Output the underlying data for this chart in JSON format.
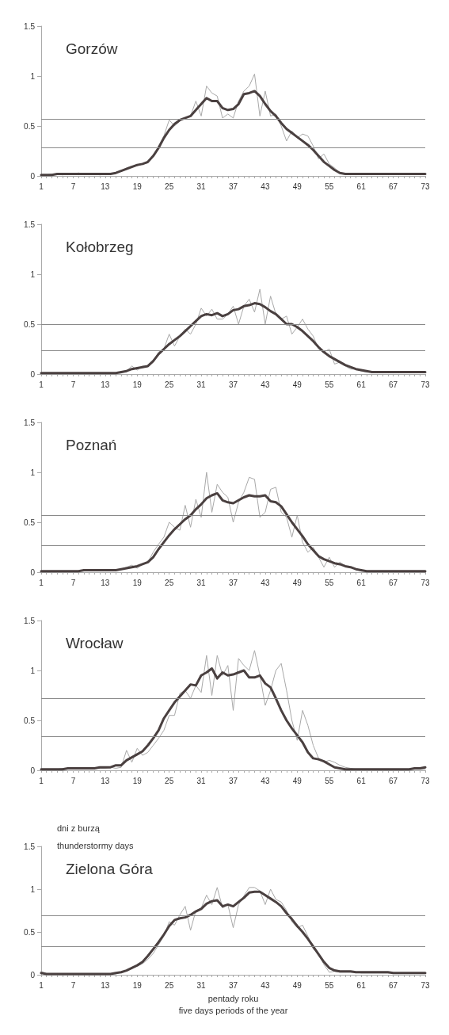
{
  "chart_data": [
    {
      "type": "line",
      "title": "Gorzów",
      "categories": [
        "1",
        null,
        null,
        null,
        null,
        null,
        "7",
        null,
        null,
        null,
        null,
        null,
        "13",
        null,
        null,
        null,
        null,
        null,
        "19",
        null,
        null,
        null,
        null,
        null,
        "25",
        null,
        null,
        null,
        null,
        null,
        "31",
        null,
        null,
        null,
        null,
        null,
        "37",
        null,
        null,
        null,
        null,
        null,
        "43",
        null,
        null,
        null,
        null,
        null,
        "49",
        null,
        null,
        null,
        null,
        null,
        "55",
        null,
        null,
        null,
        null,
        null,
        "61",
        null,
        null,
        null,
        null,
        null,
        "67",
        null,
        null,
        null,
        null,
        null,
        "73"
      ],
      "ylim": [
        0,
        1.5
      ],
      "yticks": [
        0,
        0.5,
        1,
        1.5
      ],
      "series": [
        {
          "color": "#a8a8a8",
          "values": [
            0.01,
            0.01,
            0.02,
            0.02,
            0.01,
            0.02,
            0.02,
            0.03,
            0.02,
            0.02,
            0.02,
            0.01,
            0.02,
            0.02,
            0.03,
            0.05,
            0.08,
            0.1,
            0.1,
            0.12,
            0.13,
            0.2,
            0.3,
            0.4,
            0.56,
            0.5,
            0.55,
            0.58,
            0.6,
            0.75,
            0.6,
            0.9,
            0.83,
            0.8,
            0.58,
            0.62,
            0.58,
            0.75,
            0.85,
            0.9,
            1.02,
            0.6,
            0.85,
            0.6,
            0.62,
            0.5,
            0.35,
            0.45,
            0.38,
            0.42,
            0.4,
            0.3,
            0.17,
            0.22,
            0.12,
            0.08,
            0.03,
            0.02,
            0.02,
            0.02,
            0.02,
            0.02,
            0.02,
            0.02,
            0.02,
            0.02,
            0.02,
            0.02,
            0.02,
            0.02,
            0.02,
            0.02,
            0.02
          ]
        },
        {
          "color": "#4a4040",
          "values": [
            0.01,
            0.01,
            0.01,
            0.02,
            0.02,
            0.02,
            0.02,
            0.02,
            0.02,
            0.02,
            0.02,
            0.02,
            0.02,
            0.02,
            0.03,
            0.05,
            0.07,
            0.09,
            0.11,
            0.12,
            0.14,
            0.2,
            0.28,
            0.38,
            0.46,
            0.52,
            0.56,
            0.58,
            0.6,
            0.66,
            0.72,
            0.78,
            0.75,
            0.75,
            0.68,
            0.66,
            0.67,
            0.72,
            0.82,
            0.83,
            0.85,
            0.8,
            0.72,
            0.65,
            0.6,
            0.53,
            0.47,
            0.43,
            0.39,
            0.35,
            0.31,
            0.26,
            0.2,
            0.14,
            0.1,
            0.06,
            0.03,
            0.02,
            0.02,
            0.02,
            0.02,
            0.02,
            0.02,
            0.02,
            0.02,
            0.02,
            0.02,
            0.02,
            0.02,
            0.02,
            0.02,
            0.02,
            0.02
          ]
        }
      ],
      "ref_lines": [
        {
          "axis": "y",
          "value": 0.57,
          "color": "#8a8a8a"
        },
        {
          "axis": "y",
          "value": 0.28,
          "color": "#8a8a8a"
        }
      ]
    },
    {
      "type": "line",
      "title": "Kołobrzeg",
      "categories": [
        "1",
        null,
        null,
        null,
        null,
        null,
        "7",
        null,
        null,
        null,
        null,
        null,
        "13",
        null,
        null,
        null,
        null,
        null,
        "19",
        null,
        null,
        null,
        null,
        null,
        "25",
        null,
        null,
        null,
        null,
        null,
        "31",
        null,
        null,
        null,
        null,
        null,
        "37",
        null,
        null,
        null,
        null,
        null,
        "43",
        null,
        null,
        null,
        null,
        null,
        "49",
        null,
        null,
        null,
        null,
        null,
        "55",
        null,
        null,
        null,
        null,
        null,
        "61",
        null,
        null,
        null,
        null,
        null,
        "67",
        null,
        null,
        null,
        null,
        null,
        "73"
      ],
      "ylim": [
        0,
        1.5
      ],
      "yticks": [
        0,
        0.5,
        1,
        1.5
      ],
      "series": [
        {
          "color": "#a8a8a8",
          "values": [
            0.01,
            0.01,
            0.01,
            0.01,
            0.01,
            0.01,
            0.01,
            0.01,
            0.01,
            0.01,
            0.01,
            0.01,
            0.01,
            0.01,
            0.01,
            0.01,
            0.03,
            0.08,
            0.04,
            0.08,
            0.08,
            0.12,
            0.22,
            0.25,
            0.4,
            0.28,
            0.38,
            0.45,
            0.4,
            0.5,
            0.66,
            0.58,
            0.65,
            0.55,
            0.55,
            0.6,
            0.68,
            0.5,
            0.68,
            0.75,
            0.62,
            0.85,
            0.5,
            0.78,
            0.6,
            0.55,
            0.58,
            0.4,
            0.47,
            0.55,
            0.45,
            0.38,
            0.25,
            0.22,
            0.25,
            0.1,
            0.12,
            0.08,
            0.05,
            0.05,
            0.03,
            0.02,
            0.02,
            0.02,
            0.02,
            0.02,
            0.02,
            0.02,
            0.02,
            0.02,
            0.02,
            0.02,
            0.02
          ]
        },
        {
          "color": "#4a4040",
          "values": [
            0.01,
            0.01,
            0.01,
            0.01,
            0.01,
            0.01,
            0.01,
            0.01,
            0.01,
            0.01,
            0.01,
            0.01,
            0.01,
            0.01,
            0.01,
            0.02,
            0.03,
            0.05,
            0.06,
            0.07,
            0.08,
            0.13,
            0.2,
            0.25,
            0.3,
            0.34,
            0.38,
            0.43,
            0.48,
            0.53,
            0.58,
            0.6,
            0.59,
            0.61,
            0.58,
            0.6,
            0.64,
            0.65,
            0.68,
            0.69,
            0.71,
            0.7,
            0.67,
            0.63,
            0.6,
            0.55,
            0.5,
            0.5,
            0.47,
            0.43,
            0.38,
            0.33,
            0.27,
            0.22,
            0.18,
            0.15,
            0.12,
            0.09,
            0.07,
            0.05,
            0.04,
            0.03,
            0.02,
            0.02,
            0.02,
            0.02,
            0.02,
            0.02,
            0.02,
            0.02,
            0.02,
            0.02,
            0.02
          ]
        }
      ],
      "ref_lines": [
        {
          "axis": "y",
          "value": 0.5,
          "color": "#8a8a8a"
        },
        {
          "axis": "y",
          "value": 0.24,
          "color": "#8a8a8a"
        }
      ]
    },
    {
      "type": "line",
      "title": "Poznań",
      "categories": [
        "1",
        null,
        null,
        null,
        null,
        null,
        "7",
        null,
        null,
        null,
        null,
        null,
        "13",
        null,
        null,
        null,
        null,
        null,
        "19",
        null,
        null,
        null,
        null,
        null,
        "25",
        null,
        null,
        null,
        null,
        null,
        "31",
        null,
        null,
        null,
        null,
        null,
        "37",
        null,
        null,
        null,
        null,
        null,
        "43",
        null,
        null,
        null,
        null,
        null,
        "49",
        null,
        null,
        null,
        null,
        null,
        "55",
        null,
        null,
        null,
        null,
        null,
        "61",
        null,
        null,
        null,
        null,
        null,
        "67",
        null,
        null,
        null,
        null,
        null,
        "73"
      ],
      "ylim": [
        0,
        1.5
      ],
      "yticks": [
        0,
        0.5,
        1,
        1.5
      ],
      "series": [
        {
          "color": "#a8a8a8",
          "values": [
            0.01,
            0.01,
            0.01,
            0.01,
            0.01,
            0.01,
            0.01,
            0.01,
            0.02,
            0.02,
            0.02,
            0.02,
            0.02,
            0.02,
            0.02,
            0.03,
            0.05,
            0.07,
            0.04,
            0.08,
            0.1,
            0.2,
            0.28,
            0.35,
            0.5,
            0.45,
            0.42,
            0.67,
            0.45,
            0.73,
            0.55,
            1.0,
            0.6,
            0.88,
            0.8,
            0.75,
            0.5,
            0.7,
            0.8,
            0.95,
            0.93,
            0.55,
            0.6,
            0.83,
            0.85,
            0.6,
            0.55,
            0.35,
            0.57,
            0.3,
            0.2,
            0.25,
            0.15,
            0.05,
            0.15,
            0.05,
            0.1,
            0.06,
            0.05,
            0.03,
            0.01,
            0.01,
            0.01,
            0.01,
            0.01,
            0.01,
            0.01,
            0.01,
            0.01,
            0.01,
            0.01,
            0.01,
            0.01
          ]
        },
        {
          "color": "#4a4040",
          "values": [
            0.01,
            0.01,
            0.01,
            0.01,
            0.01,
            0.01,
            0.01,
            0.01,
            0.02,
            0.02,
            0.02,
            0.02,
            0.02,
            0.02,
            0.02,
            0.03,
            0.04,
            0.05,
            0.06,
            0.08,
            0.1,
            0.15,
            0.23,
            0.3,
            0.37,
            0.43,
            0.48,
            0.53,
            0.57,
            0.63,
            0.68,
            0.74,
            0.77,
            0.79,
            0.72,
            0.7,
            0.69,
            0.72,
            0.75,
            0.77,
            0.76,
            0.76,
            0.77,
            0.71,
            0.7,
            0.66,
            0.58,
            0.5,
            0.43,
            0.36,
            0.28,
            0.22,
            0.16,
            0.13,
            0.11,
            0.09,
            0.08,
            0.06,
            0.05,
            0.03,
            0.02,
            0.01,
            0.01,
            0.01,
            0.01,
            0.01,
            0.01,
            0.01,
            0.01,
            0.01,
            0.01,
            0.01,
            0.01
          ]
        }
      ],
      "ref_lines": [
        {
          "axis": "y",
          "value": 0.57,
          "color": "#8a8a8a"
        },
        {
          "axis": "y",
          "value": 0.27,
          "color": "#8a8a8a"
        }
      ]
    },
    {
      "type": "line",
      "title": "Wrocław",
      "categories": [
        "1",
        null,
        null,
        null,
        null,
        null,
        "7",
        null,
        null,
        null,
        null,
        null,
        "13",
        null,
        null,
        null,
        null,
        null,
        "19",
        null,
        null,
        null,
        null,
        null,
        "25",
        null,
        null,
        null,
        null,
        null,
        "31",
        null,
        null,
        null,
        null,
        null,
        "37",
        null,
        null,
        null,
        null,
        null,
        "43",
        null,
        null,
        null,
        null,
        null,
        "49",
        null,
        null,
        null,
        null,
        null,
        "55",
        null,
        null,
        null,
        null,
        null,
        "61",
        null,
        null,
        null,
        null,
        null,
        "67",
        null,
        null,
        null,
        null,
        null,
        "73"
      ],
      "ylim": [
        0,
        1.5
      ],
      "yticks": [
        0,
        0.5,
        1,
        1.5
      ],
      "series": [
        {
          "color": "#a8a8a8",
          "values": [
            0.01,
            0.01,
            0.01,
            0.01,
            0.02,
            0.02,
            0.02,
            0.02,
            0.02,
            0.02,
            0.02,
            0.02,
            0.02,
            0.03,
            0.02,
            0.03,
            0.2,
            0.08,
            0.22,
            0.15,
            0.18,
            0.25,
            0.32,
            0.4,
            0.55,
            0.55,
            0.77,
            0.8,
            0.72,
            0.85,
            0.78,
            1.15,
            0.75,
            1.15,
            0.95,
            1.05,
            0.6,
            1.12,
            1.05,
            1.0,
            1.2,
            0.95,
            0.65,
            0.8,
            1.0,
            1.07,
            0.8,
            0.5,
            0.3,
            0.6,
            0.45,
            0.25,
            0.12,
            0.08,
            0.1,
            0.08,
            0.05,
            0.03,
            0.02,
            0.01,
            0.01,
            0.01,
            0.01,
            0.01,
            0.01,
            0.01,
            0.01,
            0.01,
            0.01,
            0.01,
            0.01,
            0.01,
            0.01
          ]
        },
        {
          "color": "#4a4040",
          "values": [
            0.01,
            0.01,
            0.01,
            0.01,
            0.01,
            0.02,
            0.02,
            0.02,
            0.02,
            0.02,
            0.02,
            0.03,
            0.03,
            0.03,
            0.05,
            0.05,
            0.1,
            0.13,
            0.16,
            0.19,
            0.25,
            0.32,
            0.4,
            0.52,
            0.6,
            0.68,
            0.74,
            0.8,
            0.86,
            0.85,
            0.95,
            0.98,
            1.02,
            0.92,
            0.98,
            0.95,
            0.96,
            0.98,
            1.0,
            0.93,
            0.93,
            0.95,
            0.87,
            0.83,
            0.72,
            0.6,
            0.5,
            0.42,
            0.35,
            0.28,
            0.18,
            0.12,
            0.11,
            0.09,
            0.06,
            0.03,
            0.02,
            0.01,
            0.01,
            0.01,
            0.01,
            0.01,
            0.01,
            0.01,
            0.01,
            0.01,
            0.01,
            0.01,
            0.01,
            0.01,
            0.02,
            0.02,
            0.03
          ]
        }
      ],
      "ref_lines": [
        {
          "axis": "y",
          "value": 0.72,
          "color": "#8a8a8a"
        },
        {
          "axis": "y",
          "value": 0.34,
          "color": "#8a8a8a"
        }
      ]
    },
    {
      "type": "line",
      "title": "Zielona Góra",
      "ylabel": "dni z burzą\nthunderstormy days",
      "xlabel": "pentady roku\nfive days periods of the year",
      "categories": [
        "1",
        null,
        null,
        null,
        null,
        null,
        "7",
        null,
        null,
        null,
        null,
        null,
        "13",
        null,
        null,
        null,
        null,
        null,
        "19",
        null,
        null,
        null,
        null,
        null,
        "25",
        null,
        null,
        null,
        null,
        null,
        "31",
        null,
        null,
        null,
        null,
        null,
        "37",
        null,
        null,
        null,
        null,
        null,
        "43",
        null,
        null,
        null,
        null,
        null,
        "49",
        null,
        null,
        null,
        null,
        null,
        "55",
        null,
        null,
        null,
        null,
        null,
        "61",
        null,
        null,
        null,
        null,
        null,
        "67",
        null,
        null,
        null,
        null,
        null,
        "73"
      ],
      "ylim": [
        0,
        1.5
      ],
      "yticks": [
        0,
        0.5,
        1,
        1.5
      ],
      "series": [
        {
          "color": "#a8a8a8",
          "values": [
            0.04,
            0.01,
            0.01,
            0.01,
            0.01,
            0.01,
            0.01,
            0.01,
            0.01,
            0.01,
            0.01,
            0.01,
            0.01,
            0.01,
            0.01,
            0.03,
            0.05,
            0.08,
            0.1,
            0.13,
            0.18,
            0.25,
            0.35,
            0.45,
            0.62,
            0.58,
            0.7,
            0.8,
            0.52,
            0.75,
            0.78,
            0.93,
            0.82,
            1.02,
            0.78,
            0.82,
            0.55,
            0.82,
            0.92,
            1.02,
            1.02,
            0.98,
            0.82,
            1.0,
            0.88,
            0.85,
            0.75,
            0.62,
            0.55,
            0.58,
            0.45,
            0.3,
            0.25,
            0.12,
            0.03,
            0.04,
            0.03,
            0.03,
            0.03,
            0.03,
            0.02,
            0.02,
            0.02,
            0.02,
            0.02,
            0.02,
            0.02,
            0.02,
            0.02,
            0.02,
            0.02,
            0.02,
            0.02
          ]
        },
        {
          "color": "#4a4040",
          "values": [
            0.02,
            0.01,
            0.01,
            0.01,
            0.01,
            0.01,
            0.01,
            0.01,
            0.01,
            0.01,
            0.01,
            0.01,
            0.01,
            0.01,
            0.02,
            0.03,
            0.05,
            0.08,
            0.11,
            0.15,
            0.22,
            0.3,
            0.38,
            0.47,
            0.57,
            0.64,
            0.66,
            0.67,
            0.7,
            0.74,
            0.77,
            0.83,
            0.86,
            0.87,
            0.8,
            0.82,
            0.8,
            0.85,
            0.9,
            0.96,
            0.97,
            0.97,
            0.93,
            0.89,
            0.85,
            0.8,
            0.72,
            0.65,
            0.57,
            0.5,
            0.42,
            0.33,
            0.24,
            0.15,
            0.08,
            0.05,
            0.04,
            0.04,
            0.04,
            0.03,
            0.03,
            0.03,
            0.03,
            0.03,
            0.03,
            0.03,
            0.02,
            0.02,
            0.02,
            0.02,
            0.02,
            0.02,
            0.02
          ]
        }
      ],
      "ref_lines": [
        {
          "axis": "y",
          "value": 0.69,
          "color": "#8a8a8a"
        },
        {
          "axis": "y",
          "value": 0.33,
          "color": "#8a8a8a"
        }
      ]
    }
  ]
}
